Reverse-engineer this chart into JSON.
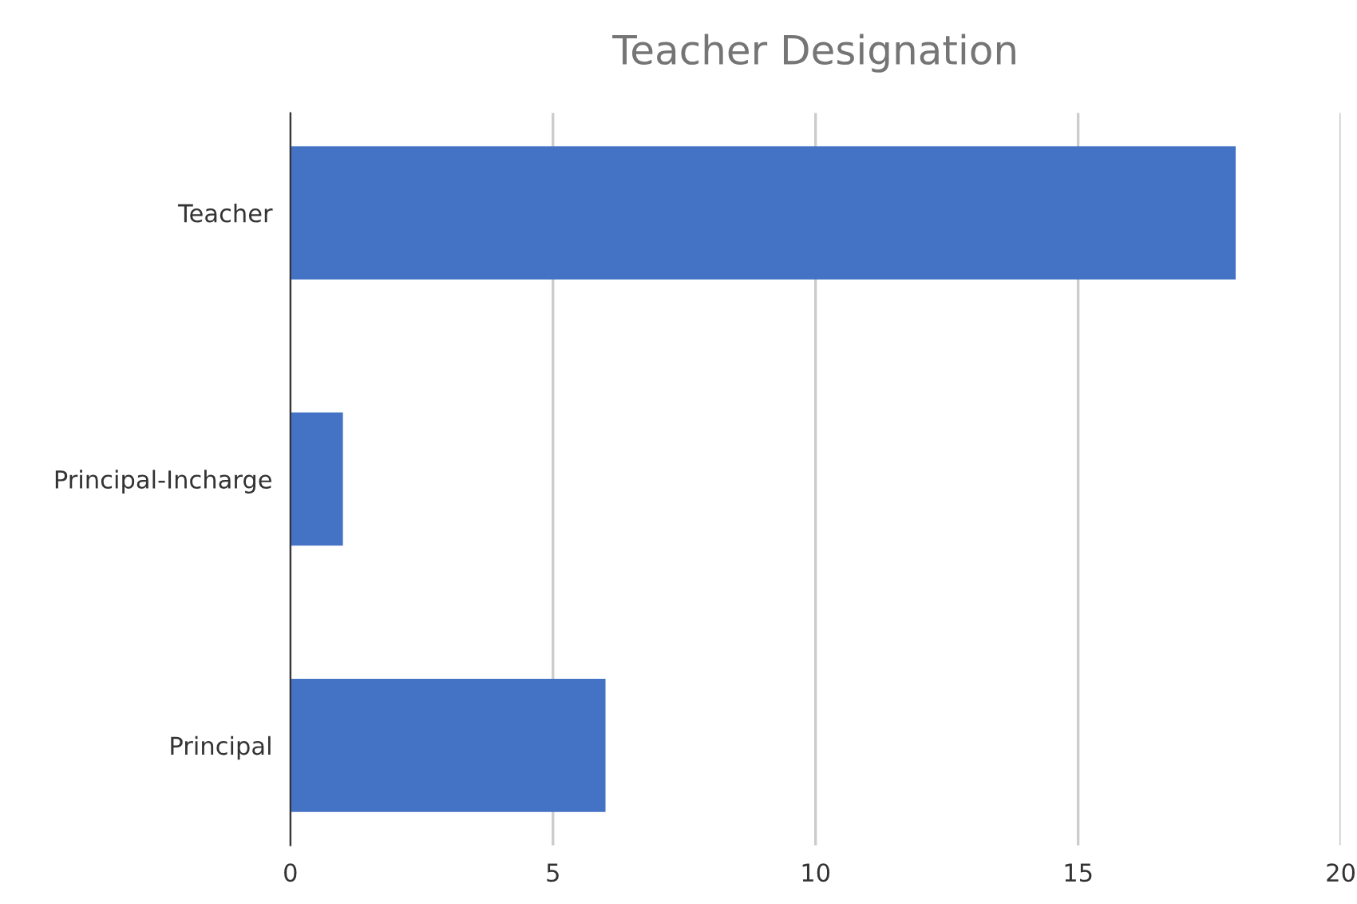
{
  "chart_data": {
    "type": "bar",
    "orientation": "horizontal",
    "title": "Teacher Designation",
    "categories": [
      "Teacher",
      "Principal-Incharge",
      "Principal"
    ],
    "values": [
      18,
      1,
      6
    ],
    "color": "#4472c4",
    "xlim": [
      0,
      20
    ],
    "xticks": [
      0,
      5,
      10,
      15,
      20
    ],
    "grid": "x"
  }
}
